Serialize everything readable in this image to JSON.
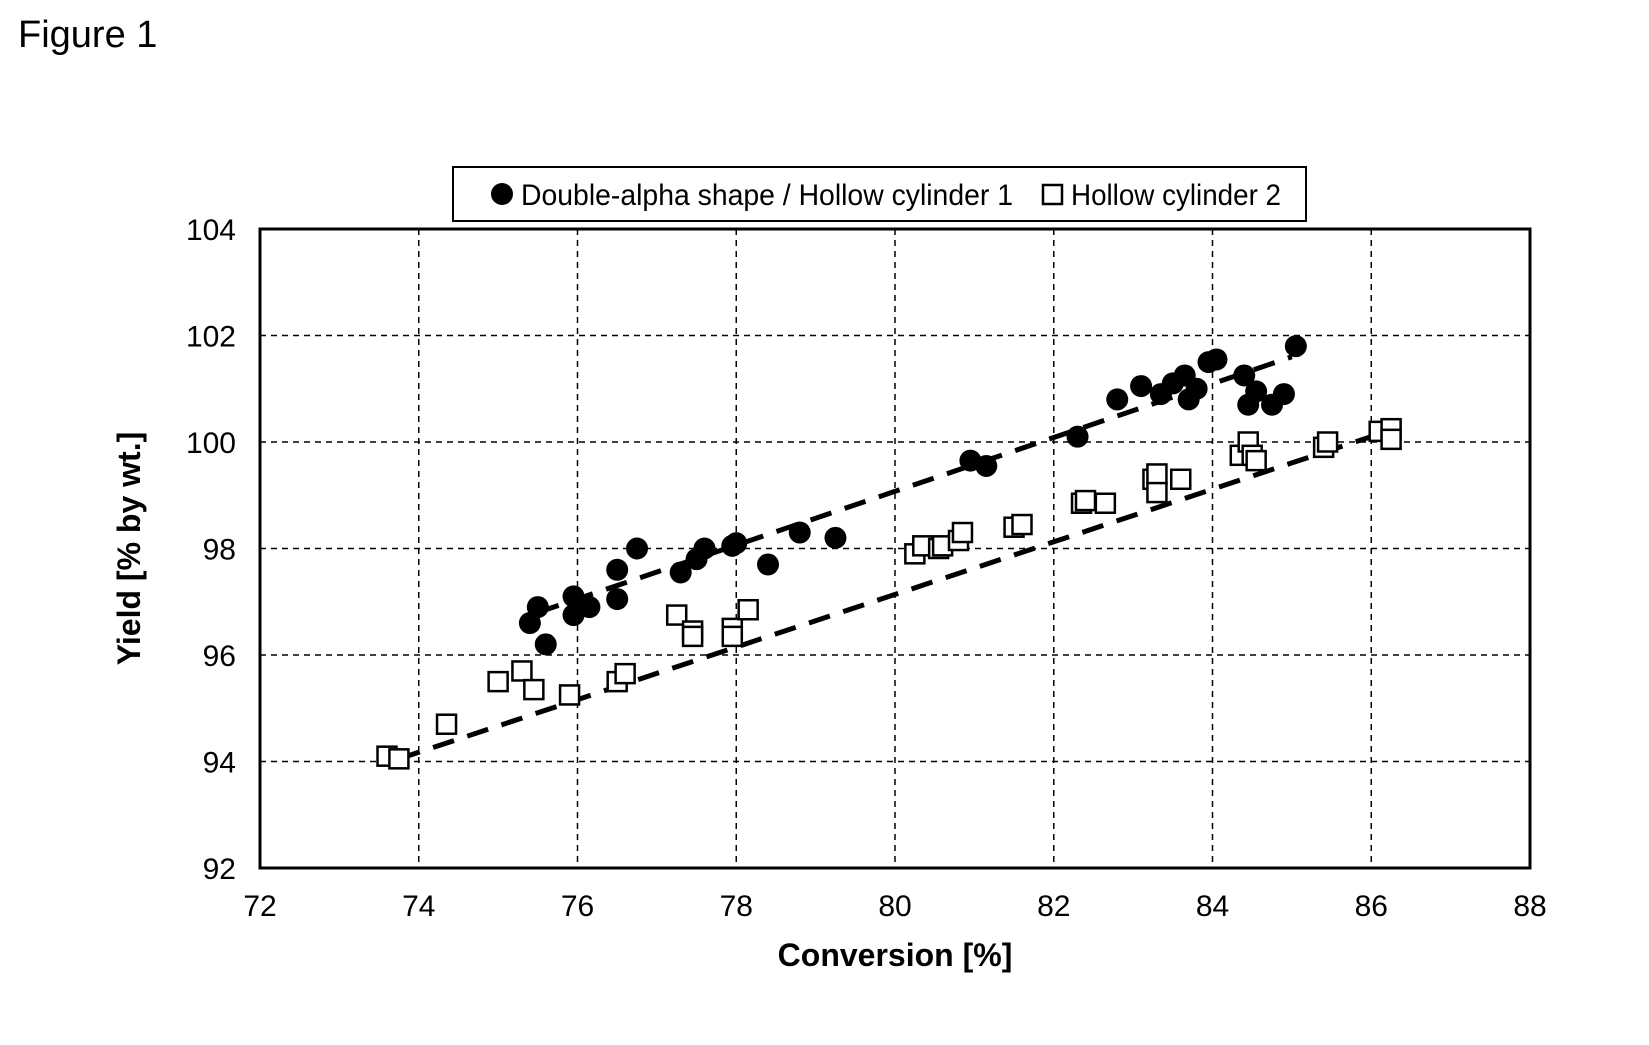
{
  "figure_label": "Figure 1",
  "chart_data": {
    "type": "scatter",
    "title": "",
    "xlabel": "Conversion [%]",
    "ylabel": "Yield [% by wt.]",
    "xlim": [
      72,
      88
    ],
    "ylim": [
      92,
      104
    ],
    "xticks": [
      72,
      74,
      76,
      78,
      80,
      82,
      84,
      86,
      88
    ],
    "yticks": [
      92,
      94,
      96,
      98,
      100,
      102,
      104
    ],
    "grid": true,
    "grid_style": "dashed",
    "legend_position": "top-center",
    "series": [
      {
        "name": "Double-alpha shape / Hollow cylinder 1",
        "marker": "filled-circle",
        "color": "#000000",
        "points": [
          [
            75.4,
            96.6
          ],
          [
            75.5,
            96.9
          ],
          [
            75.6,
            96.2
          ],
          [
            75.95,
            97.1
          ],
          [
            75.95,
            96.75
          ],
          [
            76.15,
            96.9
          ],
          [
            76.5,
            97.6
          ],
          [
            76.5,
            97.05
          ],
          [
            76.75,
            98.0
          ],
          [
            77.3,
            97.55
          ],
          [
            77.5,
            97.8
          ],
          [
            77.6,
            98.0
          ],
          [
            77.95,
            98.05
          ],
          [
            78.0,
            98.1
          ],
          [
            78.4,
            97.7
          ],
          [
            78.8,
            98.3
          ],
          [
            79.25,
            98.2
          ],
          [
            80.95,
            99.65
          ],
          [
            81.15,
            99.55
          ],
          [
            82.3,
            100.1
          ],
          [
            82.8,
            100.8
          ],
          [
            83.1,
            101.05
          ],
          [
            83.35,
            100.9
          ],
          [
            83.5,
            101.1
          ],
          [
            83.65,
            101.25
          ],
          [
            83.7,
            100.8
          ],
          [
            83.8,
            101.0
          ],
          [
            83.95,
            101.5
          ],
          [
            84.05,
            101.55
          ],
          [
            84.4,
            101.25
          ],
          [
            84.45,
            100.7
          ],
          [
            84.55,
            100.95
          ],
          [
            84.75,
            100.7
          ],
          [
            84.9,
            100.9
          ],
          [
            85.05,
            101.8
          ]
        ],
        "trendline": {
          "x": [
            75.5,
            85.0
          ],
          "y": [
            96.8,
            101.6
          ],
          "style": "dashed"
        }
      },
      {
        "name": "Hollow cylinder 2",
        "marker": "open-square",
        "color": "#000000",
        "points": [
          [
            73.6,
            94.1
          ],
          [
            73.75,
            94.05
          ],
          [
            74.35,
            94.7
          ],
          [
            75.0,
            95.5
          ],
          [
            75.3,
            95.7
          ],
          [
            75.45,
            95.35
          ],
          [
            75.9,
            95.25
          ],
          [
            76.5,
            95.5
          ],
          [
            76.6,
            95.65
          ],
          [
            77.25,
            96.75
          ],
          [
            77.45,
            96.45
          ],
          [
            77.45,
            96.35
          ],
          [
            77.95,
            96.5
          ],
          [
            77.95,
            96.35
          ],
          [
            78.15,
            96.85
          ],
          [
            80.25,
            97.9
          ],
          [
            80.35,
            98.05
          ],
          [
            80.55,
            98.0
          ],
          [
            80.6,
            98.05
          ],
          [
            80.8,
            98.15
          ],
          [
            80.85,
            98.3
          ],
          [
            81.5,
            98.4
          ],
          [
            81.6,
            98.45
          ],
          [
            82.35,
            98.85
          ],
          [
            82.4,
            98.9
          ],
          [
            82.65,
            98.85
          ],
          [
            83.25,
            99.3
          ],
          [
            83.3,
            99.4
          ],
          [
            83.3,
            99.05
          ],
          [
            83.6,
            99.3
          ],
          [
            84.35,
            99.75
          ],
          [
            84.45,
            100.0
          ],
          [
            84.5,
            99.75
          ],
          [
            84.55,
            99.65
          ],
          [
            85.4,
            99.9
          ],
          [
            85.45,
            100.0
          ],
          [
            86.1,
            100.2
          ],
          [
            86.25,
            100.25
          ],
          [
            86.25,
            100.05
          ]
        ],
        "trendline": {
          "x": [
            73.75,
            86.2
          ],
          "y": [
            94.05,
            100.2
          ],
          "style": "dashed"
        }
      }
    ]
  }
}
